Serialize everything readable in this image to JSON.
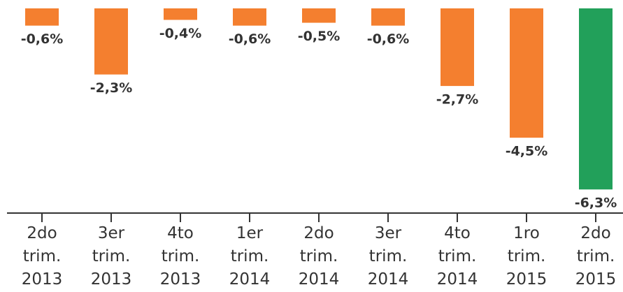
{
  "chart_data": {
    "type": "bar",
    "categories": [
      "2do trim. 2013",
      "3er trim. 2013",
      "4to trim. 2013",
      "1er trim. 2014",
      "2do trim. 2014",
      "3er trim. 2014",
      "4to trim. 2014",
      "1ro trim. 2015",
      "2do trim. 2015"
    ],
    "values": [
      -0.6,
      -2.3,
      -0.4,
      -0.6,
      -0.5,
      -0.6,
      -2.7,
      -4.5,
      -6.3
    ],
    "value_labels": [
      "-0,6%",
      "-2,3%",
      "-0,4%",
      "-0,6%",
      "-0,5%",
      "-0,6%",
      "-2,7%",
      "-4,5%",
      "-6,3%"
    ],
    "colors": [
      "#f47f2f",
      "#f47f2f",
      "#f47f2f",
      "#f47f2f",
      "#f47f2f",
      "#f47f2f",
      "#f47f2f",
      "#f47f2f",
      "#22a05a"
    ],
    "ylim": [
      -7,
      0
    ]
  }
}
